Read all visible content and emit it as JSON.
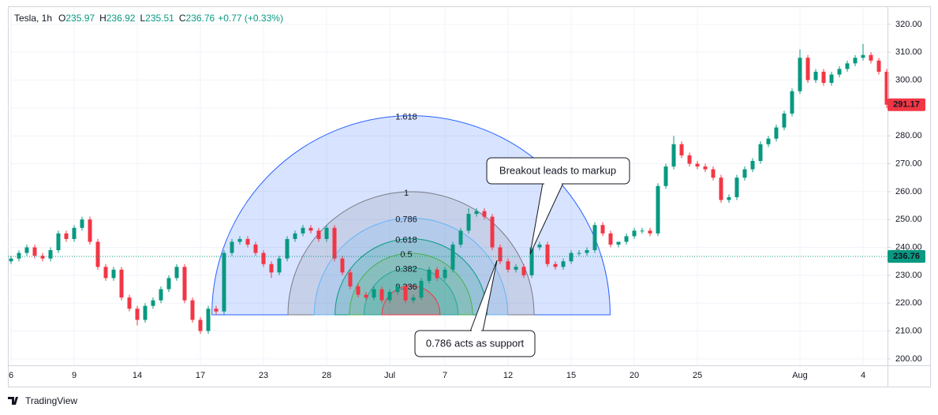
{
  "header": {
    "symbol": "Tesla, 1h",
    "fields": [
      {
        "label": "O",
        "value": "235.97"
      },
      {
        "label": "H",
        "value": "236.92"
      },
      {
        "label": "L",
        "value": "235.51"
      },
      {
        "label": "C",
        "value": "236.76"
      }
    ],
    "change": "+0.77 (+0.33%)"
  },
  "chart_data": {
    "type": "candlestick",
    "up_color": "#089981",
    "down_color": "#f23645",
    "categories": [
      "6",
      null,
      null,
      null,
      null,
      null,
      null,
      null,
      "9",
      null,
      null,
      null,
      null,
      null,
      null,
      null,
      "14",
      null,
      null,
      null,
      null,
      null,
      null,
      null,
      "17",
      null,
      null,
      null,
      null,
      null,
      null,
      null,
      "23",
      null,
      null,
      null,
      null,
      null,
      null,
      null,
      "28",
      null,
      null,
      null,
      null,
      null,
      null,
      null,
      "Jul",
      null,
      null,
      null,
      null,
      null,
      null,
      "7",
      null,
      null,
      null,
      null,
      null,
      null,
      null,
      "12",
      null,
      null,
      null,
      null,
      null,
      null,
      null,
      "15",
      null,
      null,
      null,
      null,
      null,
      null,
      null,
      "20",
      null,
      null,
      null,
      null,
      null,
      null,
      null,
      "25",
      null,
      null,
      null,
      null,
      null,
      null,
      null,
      null,
      null,
      null,
      null,
      null,
      "Aug",
      null,
      null,
      null,
      null,
      null,
      null,
      null,
      "4",
      null,
      null,
      null
    ],
    "open": [
      235,
      236,
      238,
      240,
      237,
      236,
      239,
      245,
      243,
      247,
      250,
      242,
      233,
      229,
      232,
      222,
      218,
      214,
      219,
      221,
      225,
      229,
      233,
      221,
      214,
      210,
      218,
      217,
      238,
      242,
      243,
      241,
      238,
      234,
      231,
      236,
      243,
      245,
      247,
      246,
      243,
      247,
      236,
      231,
      226,
      223,
      222,
      225,
      221,
      224,
      226,
      221,
      222,
      228,
      232,
      229,
      232,
      241,
      246,
      252,
      253,
      251,
      240,
      235,
      232,
      233,
      230,
      240,
      241,
      234,
      233,
      235,
      238,
      238,
      239,
      248,
      245,
      241,
      242,
      244,
      246,
      246,
      245,
      262,
      269,
      277,
      273,
      270,
      269,
      268,
      265,
      257,
      258,
      265,
      268,
      271,
      277,
      279,
      283,
      288,
      296,
      308,
      300,
      303,
      299,
      302,
      304,
      306,
      308,
      309,
      307,
      303
    ],
    "high": [
      237,
      239,
      241,
      241,
      238,
      240,
      246,
      246,
      248,
      251,
      251,
      243,
      234,
      233,
      233,
      223,
      219,
      220,
      222,
      226,
      230,
      234,
      234,
      222,
      215,
      219,
      219,
      239,
      243,
      244,
      244,
      242,
      239,
      235,
      237,
      244,
      246,
      248,
      248,
      247,
      248,
      248,
      237,
      232,
      227,
      224,
      226,
      226,
      225,
      227,
      227,
      223,
      229,
      233,
      233,
      233,
      242,
      247,
      254,
      254,
      254,
      252,
      241,
      236,
      234,
      234,
      241,
      242,
      242,
      235,
      236,
      239,
      239,
      240,
      249,
      249,
      246,
      242,
      245,
      247,
      247,
      247,
      263,
      270,
      280,
      278,
      274,
      271,
      270,
      269,
      266,
      259,
      266,
      269,
      272,
      278,
      280,
      284,
      289,
      297,
      311,
      309,
      304,
      304,
      303,
      305,
      307,
      309,
      313,
      310,
      308,
      304
    ],
    "low": [
      234,
      235,
      237,
      236,
      235,
      235,
      238,
      242,
      242,
      246,
      241,
      232,
      228,
      228,
      221,
      217,
      212,
      213,
      218,
      220,
      224,
      228,
      220,
      213,
      209,
      209,
      216,
      216,
      237,
      241,
      240,
      237,
      233,
      229,
      230,
      235,
      242,
      244,
      245,
      242,
      242,
      235,
      230,
      225,
      222,
      221,
      221,
      220,
      220,
      223,
      220,
      220,
      221,
      227,
      228,
      228,
      231,
      240,
      245,
      251,
      250,
      239,
      234,
      231,
      231,
      229,
      229,
      239,
      233,
      232,
      232,
      234,
      237,
      237,
      238,
      244,
      240,
      240,
      241,
      243,
      245,
      244,
      244,
      261,
      268,
      272,
      269,
      268,
      267,
      264,
      256,
      256,
      257,
      264,
      267,
      270,
      276,
      278,
      282,
      287,
      295,
      299,
      299,
      298,
      298,
      301,
      303,
      305,
      307,
      306,
      302,
      290
    ],
    "close": [
      236,
      238,
      240,
      237,
      236,
      239,
      245,
      243,
      247,
      250,
      242,
      233,
      229,
      232,
      222,
      218,
      214,
      219,
      221,
      225,
      229,
      233,
      221,
      214,
      210,
      218,
      217,
      238,
      242,
      243,
      241,
      238,
      234,
      231,
      236,
      243,
      245,
      247,
      246,
      243,
      247,
      236,
      231,
      226,
      223,
      222,
      225,
      221,
      224,
      226,
      221,
      222,
      228,
      232,
      229,
      232,
      241,
      246,
      252,
      253,
      251,
      240,
      235,
      232,
      233,
      230,
      240,
      241,
      234,
      233,
      235,
      238,
      238,
      239,
      248,
      245,
      241,
      242,
      244,
      246,
      246,
      245,
      262,
      269,
      277,
      273,
      270,
      269,
      268,
      265,
      257,
      258,
      265,
      268,
      271,
      277,
      279,
      283,
      288,
      296,
      308,
      300,
      303,
      299,
      302,
      304,
      306,
      308,
      309,
      307,
      303,
      291.17
    ],
    "crosshair_price": 236.76,
    "crosshair_color": "#089981",
    "ylim": [
      197.7,
      325.9
    ],
    "yticks": [
      {
        "value": 200,
        "label": "200.00"
      },
      {
        "value": 210,
        "label": "210.00"
      },
      {
        "value": 220,
        "label": "220.00"
      },
      {
        "value": 230,
        "label": "230.00"
      },
      {
        "value": 240,
        "label": "240.00"
      },
      {
        "value": 250,
        "label": "250.00"
      },
      {
        "value": 260,
        "label": "260.00"
      },
      {
        "value": 270,
        "label": "270.00"
      },
      {
        "value": 280,
        "label": "280.00"
      },
      {
        "value": 290,
        "label": "290.00"
      },
      {
        "value": 300,
        "label": "300.00"
      },
      {
        "value": 310,
        "label": "310.00"
      },
      {
        "value": 320,
        "label": "320.00"
      }
    ],
    "grid": true,
    "fib_arcs": [
      {
        "level": 1.618,
        "color": "#2962ff"
      },
      {
        "level": 1,
        "color": "#787b86"
      },
      {
        "level": 0.786,
        "color": "#64b5f6"
      },
      {
        "level": 0.618,
        "color": "#089981"
      },
      {
        "level": 0.5,
        "color": "#4caf50"
      },
      {
        "level": 0.382,
        "color": "#26a69a"
      },
      {
        "level": 0.236,
        "color": "#f23645"
      }
    ],
    "annotations": [
      "Breakout leads to markup",
      "0.786 acts as support"
    ]
  },
  "footer": {
    "brand": "TradingView"
  }
}
